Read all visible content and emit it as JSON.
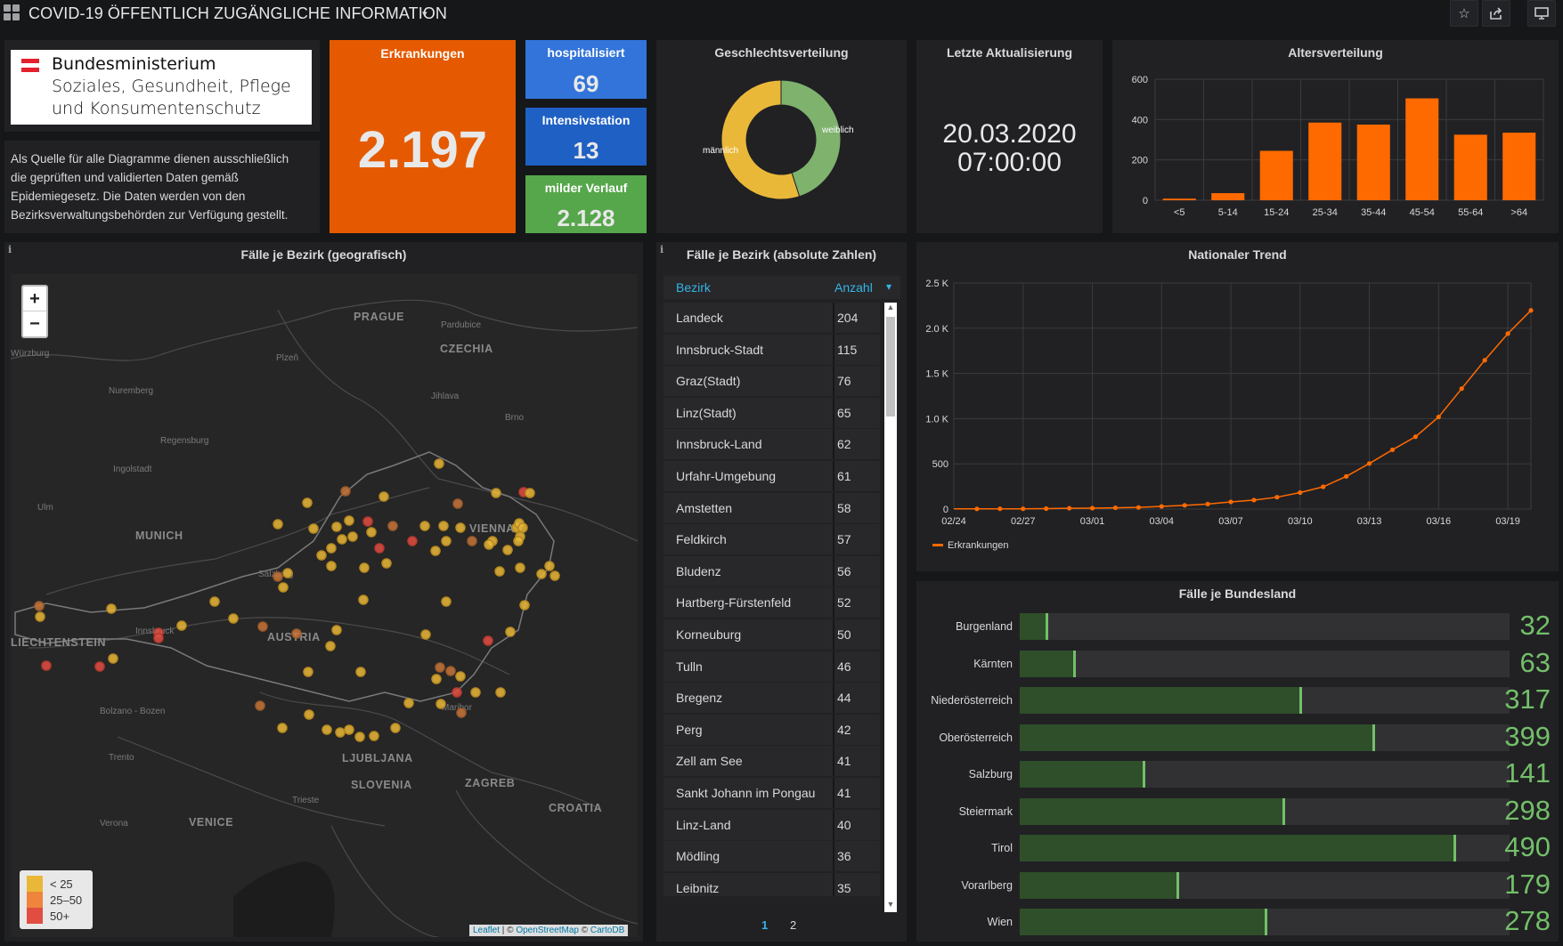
{
  "header": {
    "title": "COVID-19 ÖFFENTLICH ZUGÄNGLICHE INFORMATION",
    "caret": "▾",
    "star_icon": "☆",
    "share_icon": "⇪",
    "monitor_icon": "▭"
  },
  "logo": {
    "line1": "Bundesministerium",
    "line2": "Soziales, Gesundheit, Pflege",
    "line3": "und Konsumentenschutz",
    "flag_colors": [
      "#e4202e",
      "#ffffff",
      "#e4202e"
    ]
  },
  "source_text": "Als Quelle für alle Diagramme dienen ausschließlich die geprüften und validierten Daten gemäß Epidemiegesetz. Die Daten werden von den Bezirksverwaltungsbehörden zur Verfügung gestellt.",
  "stats": {
    "erkrankungen": {
      "label": "Erkrankungen",
      "value": "2.197",
      "color": "#e55a00"
    },
    "hospitalisiert": {
      "label": "hospitalisiert",
      "value": "69",
      "color": "#3274d9"
    },
    "intensivstation": {
      "label": "Intensivstation",
      "value": "13",
      "color": "#1f60c4"
    },
    "milder_verlauf": {
      "label": "milder Verlauf",
      "value": "2.128",
      "color": "#56a64b"
    }
  },
  "gender": {
    "title": "Geschlechtsverteilung",
    "male_label": "männlich",
    "female_label": "weiblich",
    "male_share": 0.55,
    "female_share": 0.45,
    "male_color": "#eab839",
    "female_color": "#7eb26d"
  },
  "update": {
    "title": "Letzte Aktualisierung",
    "date": "20.03.2020",
    "time": "07:00:00"
  },
  "chart_data": [
    {
      "type": "bar",
      "title": "Altersverteilung",
      "categories": [
        "<5",
        "5-14",
        "15-24",
        "25-34",
        "35-44",
        "45-54",
        "55-64",
        ">64"
      ],
      "values": [
        8,
        35,
        245,
        385,
        375,
        505,
        325,
        335
      ],
      "yticks": [
        "0",
        "200",
        "400",
        "600"
      ],
      "ylim": [
        0,
        600
      ],
      "color": "#ff6a00",
      "grid": true
    },
    {
      "type": "line",
      "title": "Nationaler Trend",
      "x": [
        "02/24",
        "02/25",
        "02/26",
        "02/27",
        "02/28",
        "02/29",
        "03/01",
        "03/02",
        "03/03",
        "03/04",
        "03/05",
        "03/06",
        "03/07",
        "03/08",
        "03/09",
        "03/10",
        "03/11",
        "03/12",
        "03/13",
        "03/14",
        "03/15",
        "03/16",
        "03/17",
        "03/18",
        "03/19",
        "03/20"
      ],
      "xticks": [
        "02/24",
        "02/27",
        "03/01",
        "03/04",
        "03/07",
        "03/10",
        "03/13",
        "03/16",
        "03/19"
      ],
      "series": [
        {
          "name": "Erkrankungen",
          "values": [
            2,
            2,
            3,
            3,
            5,
            9,
            10,
            14,
            18,
            29,
            41,
            55,
            79,
            99,
            131,
            182,
            246,
            361,
            504,
            655,
            800,
            1018,
            1332,
            1646,
            1940,
            2197
          ]
        }
      ],
      "yticks": [
        "0",
        "500",
        "1.0 K",
        "1.5 K",
        "2.0 K",
        "2.5 K"
      ],
      "ylim": [
        0,
        2500
      ],
      "color": "#ff6a00",
      "grid": true,
      "legend": "bottom-left"
    }
  ],
  "map": {
    "title": "Fälle je Bezirk (geografisch)",
    "zoom_in": "+",
    "zoom_out": "−",
    "place_labels": [
      "PRAGUE",
      "Pardubice",
      "CZECHIA",
      "Würzburg",
      "Plzeň",
      "Nuremberg",
      "Jihlava",
      "Brno",
      "Regensburg",
      "Ingolstadt",
      "Ulm",
      "MUNICH",
      "VIENNA",
      "Salzburg",
      "Innsbruck",
      "AUSTRIA",
      "LIECHTENSTEIN",
      "Bolzano - Bozen",
      "Maribor",
      "Trento",
      "LJUBLJANA",
      "SLOVENIA",
      "ZAGREB",
      "Trieste",
      "Verona",
      "VENICE",
      "CROATIA"
    ],
    "legend": [
      {
        "label": "< 25",
        "color": "#eab839"
      },
      {
        "label": "25–50",
        "color": "#ef843c"
      },
      {
        "label": "50+",
        "color": "#e24d42"
      }
    ],
    "attribution": {
      "leaflet": "Leaflet",
      "sep": " | © ",
      "osm": "OpenStreetMap",
      "sep2": " © ",
      "carto": "CartoDB"
    }
  },
  "district_table": {
    "title": "Fälle je Bezirk (absolute Zahlen)",
    "col_bezirk": "Bezirk",
    "col_anzahl": "Anzahl",
    "sort_icon": "▾",
    "rows": [
      {
        "name": "Landeck",
        "count": "204"
      },
      {
        "name": "Innsbruck-Stadt",
        "count": "115"
      },
      {
        "name": "Graz(Stadt)",
        "count": "76"
      },
      {
        "name": "Linz(Stadt)",
        "count": "65"
      },
      {
        "name": "Innsbruck-Land",
        "count": "62"
      },
      {
        "name": "Urfahr-Umgebung",
        "count": "61"
      },
      {
        "name": "Amstetten",
        "count": "58"
      },
      {
        "name": "Feldkirch",
        "count": "57"
      },
      {
        "name": "Bludenz",
        "count": "56"
      },
      {
        "name": "Hartberg-Fürstenfeld",
        "count": "52"
      },
      {
        "name": "Korneuburg",
        "count": "50"
      },
      {
        "name": "Tulln",
        "count": "46"
      },
      {
        "name": "Bregenz",
        "count": "44"
      },
      {
        "name": "Perg",
        "count": "42"
      },
      {
        "name": "Zell am See",
        "count": "41"
      },
      {
        "name": "Sankt Johann im Pongau",
        "count": "41"
      },
      {
        "name": "Linz-Land",
        "count": "40"
      },
      {
        "name": "Mödling",
        "count": "36"
      },
      {
        "name": "Leibnitz",
        "count": "35"
      }
    ],
    "pages": [
      "1",
      "2"
    ]
  },
  "bundesland": {
    "title": "Fälle je Bundesland",
    "max": 550,
    "items": [
      {
        "name": "Burgenland",
        "value": "32"
      },
      {
        "name": "Kärnten",
        "value": "63"
      },
      {
        "name": "Niederösterreich",
        "value": "317"
      },
      {
        "name": "Oberösterreich",
        "value": "399"
      },
      {
        "name": "Salzburg",
        "value": "141"
      },
      {
        "name": "Steiermark",
        "value": "298"
      },
      {
        "name": "Tirol",
        "value": "490"
      },
      {
        "name": "Vorarlberg",
        "value": "179"
      },
      {
        "name": "Wien",
        "value": "278"
      }
    ]
  }
}
